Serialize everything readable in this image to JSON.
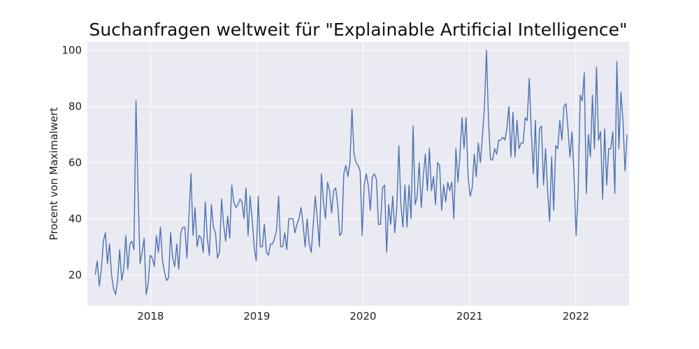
{
  "chart_data": {
    "type": "line",
    "title": "Suchanfragen weltweit für \"Explainable Artificial Intelligence\"",
    "xlabel": "",
    "ylabel": "Procent von Maximalwert",
    "xlim": [
      "2017-05-29",
      "2022-07-03"
    ],
    "ylim": [
      9,
      103
    ],
    "grid": true,
    "colors": {
      "background": "#eaeaf2",
      "grid": "#ffffff",
      "line": "#4c72b0"
    },
    "x_tick_labels": [
      "2018",
      "2019",
      "2020",
      "2021",
      "2022"
    ],
    "x_tick_dates": [
      "2018-01-01",
      "2019-01-01",
      "2020-01-01",
      "2021-01-01",
      "2022-01-01"
    ],
    "y_tick_labels": [
      "20",
      "40",
      "60",
      "80",
      "100"
    ],
    "y_ticks": [
      20,
      40,
      60,
      80,
      100
    ],
    "series": [
      {
        "start_date": "2017-06-25",
        "frequency": "weekly",
        "values": [
          20,
          25,
          16,
          22,
          32,
          35,
          24,
          31,
          20,
          15,
          13,
          18,
          29,
          18,
          22,
          34,
          22,
          31,
          32,
          29,
          82,
          50,
          24,
          28,
          33,
          13,
          17,
          27,
          26,
          23,
          34,
          28,
          37,
          25,
          21,
          18,
          19,
          35,
          26,
          23,
          31,
          22,
          35,
          37,
          37,
          26,
          41,
          56,
          34,
          44,
          30,
          34,
          33,
          28,
          46,
          33,
          27,
          45,
          37,
          35,
          26,
          28,
          47,
          38,
          32,
          41,
          33,
          52,
          46,
          44,
          45,
          47,
          46,
          40,
          51,
          34,
          48,
          40,
          30,
          25,
          48,
          30,
          30,
          38,
          28,
          27,
          31,
          31,
          33,
          36,
          48,
          30,
          30,
          35,
          29,
          40,
          40,
          40,
          35,
          38,
          40,
          44,
          38,
          30,
          40,
          31,
          28,
          38,
          48,
          40,
          30,
          56,
          46,
          40,
          53,
          50,
          42,
          50,
          51,
          45,
          34,
          35,
          56,
          59,
          55,
          60,
          79,
          63,
          60,
          59,
          57,
          34,
          52,
          56,
          52,
          43,
          55,
          56,
          54,
          38,
          38,
          51,
          52,
          28,
          45,
          38,
          48,
          35,
          44,
          66,
          45,
          37,
          52,
          37,
          52,
          40,
          73,
          45,
          48,
          60,
          44,
          55,
          63,
          50,
          65,
          50,
          55,
          45,
          60,
          59,
          43,
          52,
          46,
          53,
          50,
          53,
          40,
          65,
          53,
          63,
          76,
          65,
          76,
          55,
          48,
          51,
          63,
          55,
          67,
          60,
          69,
          80,
          100,
          75,
          61,
          61,
          65,
          63,
          68,
          68,
          69,
          68,
          72,
          80,
          62,
          78,
          62,
          75,
          65,
          67,
          67,
          76,
          75,
          90,
          71,
          56,
          75,
          51,
          72,
          73,
          52,
          65,
          50,
          39,
          62,
          43,
          66,
          65,
          75,
          68,
          80,
          81,
          72,
          62,
          71,
          55,
          34,
          50,
          84,
          82,
          92,
          49,
          70,
          62,
          84,
          65,
          94,
          68,
          71,
          47,
          72,
          52,
          65,
          65,
          71,
          49,
          96,
          65,
          85,
          75,
          57,
          70
        ]
      }
    ]
  }
}
